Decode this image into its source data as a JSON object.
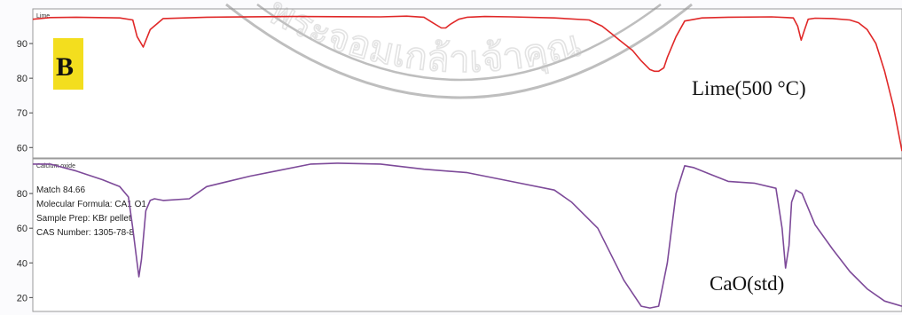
{
  "chart_data": [
    {
      "type": "line",
      "title": "Lime",
      "ylim": [
        57,
        100
      ],
      "yticks": [
        60,
        70,
        80,
        90
      ],
      "panel_label": "B",
      "annotation": "Lime(500 °C)",
      "color": "#e02828",
      "series": [
        {
          "x": [
            0,
            0.02,
            0.05,
            0.1,
            0.115,
            0.12,
            0.127,
            0.135,
            0.15,
            0.2,
            0.3,
            0.4,
            0.43,
            0.45,
            0.46,
            0.47,
            0.475,
            0.48,
            0.49,
            0.5,
            0.52,
            0.55,
            0.6,
            0.64,
            0.655,
            0.665,
            0.675,
            0.69,
            0.7,
            0.71,
            0.715,
            0.72,
            0.726,
            0.73,
            0.74,
            0.75,
            0.77,
            0.8,
            0.85,
            0.875,
            0.88,
            0.884,
            0.888,
            0.892,
            0.9,
            0.92,
            0.94,
            0.95,
            0.96,
            0.97,
            0.98,
            0.99,
            1.0
          ],
          "values": [
            97,
            97.5,
            97.6,
            97.4,
            96.8,
            92,
            89,
            94,
            97.2,
            97.6,
            97.8,
            97.7,
            97.9,
            97.6,
            96,
            94.5,
            94.5,
            95.5,
            97,
            97.6,
            97.8,
            97.7,
            97.4,
            96.8,
            95,
            93,
            91,
            88,
            85,
            82.5,
            82,
            82,
            83,
            86,
            92,
            96.5,
            97.4,
            97.6,
            97.7,
            97.4,
            95,
            91,
            94,
            97,
            97.3,
            97.2,
            96.8,
            96,
            94,
            90,
            82,
            72,
            59
          ]
        }
      ]
    },
    {
      "type": "line",
      "title": "Calcium oxide",
      "ylim": [
        12,
        100
      ],
      "yticks": [
        20,
        40,
        60,
        80
      ],
      "annotation": "CaO(std)",
      "color": "#7d4a99",
      "info_lines": [
        "Match 84.66",
        "Molecular Formula:  CA1 O1",
        "Sample Prep:  KBr pellet",
        "CAS Number:  1305-78-8"
      ],
      "series": [
        {
          "x": [
            0,
            0.02,
            0.05,
            0.08,
            0.1,
            0.11,
            0.115,
            0.12,
            0.122,
            0.125,
            0.13,
            0.135,
            0.14,
            0.15,
            0.18,
            0.2,
            0.25,
            0.28,
            0.32,
            0.35,
            0.4,
            0.45,
            0.5,
            0.55,
            0.6,
            0.62,
            0.65,
            0.66,
            0.68,
            0.7,
            0.71,
            0.72,
            0.73,
            0.74,
            0.75,
            0.76,
            0.78,
            0.8,
            0.83,
            0.855,
            0.862,
            0.866,
            0.87,
            0.873,
            0.878,
            0.885,
            0.9,
            0.92,
            0.94,
            0.96,
            0.98,
            1.0
          ],
          "values": [
            97,
            97,
            93,
            88,
            84,
            78,
            60,
            40,
            32,
            42,
            70,
            76,
            77,
            76,
            77,
            84,
            90,
            93,
            97,
            97.5,
            97,
            94,
            92,
            87,
            82,
            75,
            60,
            50,
            30,
            15,
            14,
            15,
            40,
            80,
            96,
            95,
            91,
            87,
            86,
            83,
            60,
            37,
            50,
            75,
            82,
            80,
            62,
            48,
            35,
            25,
            18,
            15
          ]
        }
      ]
    }
  ],
  "watermark": "พระจอมเกล้าเจ้าคุณ"
}
